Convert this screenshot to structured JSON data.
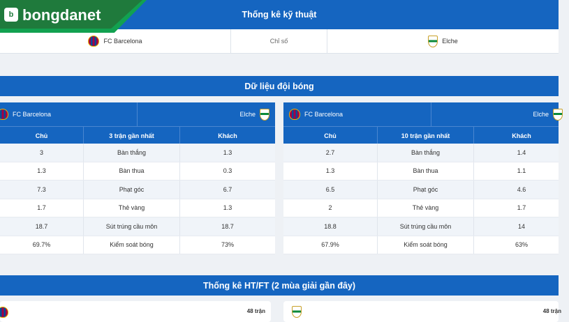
{
  "logo": {
    "mark": "b",
    "text": "bongdanet"
  },
  "tech": {
    "title": "Thống kê kỹ thuật",
    "home_team": "FC Barcelona",
    "label": "Chỉ số",
    "away_team": "Elche"
  },
  "team_data": {
    "title": "Dữ liệu đội bóng"
  },
  "panels": [
    {
      "home_team": "FC Barcelona",
      "away_team": "Elche",
      "columns": {
        "home": "Chủ",
        "mid": "3 trận gần nhất",
        "away": "Khách"
      },
      "rows": [
        {
          "home": "3",
          "label": "Bàn thắng",
          "away": "1.3"
        },
        {
          "home": "1.3",
          "label": "Bàn thua",
          "away": "0.3"
        },
        {
          "home": "7.3",
          "label": "Phạt góc",
          "away": "6.7"
        },
        {
          "home": "1.7",
          "label": "Thẻ vàng",
          "away": "1.3"
        },
        {
          "home": "18.7",
          "label": "Sút trúng cầu môn",
          "away": "18.7"
        },
        {
          "home": "69.7%",
          "label": "Kiểm soát bóng",
          "away": "73%"
        }
      ]
    },
    {
      "home_team": "FC Barcelona",
      "away_team": "Elche",
      "columns": {
        "home": "Chủ",
        "mid": "10 trận gần nhất",
        "away": "Khách"
      },
      "rows": [
        {
          "home": "2.7",
          "label": "Bàn thắng",
          "away": "1.4"
        },
        {
          "home": "1.3",
          "label": "Bàn thua",
          "away": "1.1"
        },
        {
          "home": "6.5",
          "label": "Phạt góc",
          "away": "4.6"
        },
        {
          "home": "2",
          "label": "Thẻ vàng",
          "away": "1.7"
        },
        {
          "home": "18.8",
          "label": "Sút trúng cầu môn",
          "away": "14"
        },
        {
          "home": "67.9%",
          "label": "Kiểm soát bóng",
          "away": "63%"
        }
      ]
    }
  ],
  "htft": {
    "title": "Thống kê HT/FT (2 mùa giải gần đây)",
    "left_meta": "48 trận",
    "right_meta": "48 trận"
  }
}
